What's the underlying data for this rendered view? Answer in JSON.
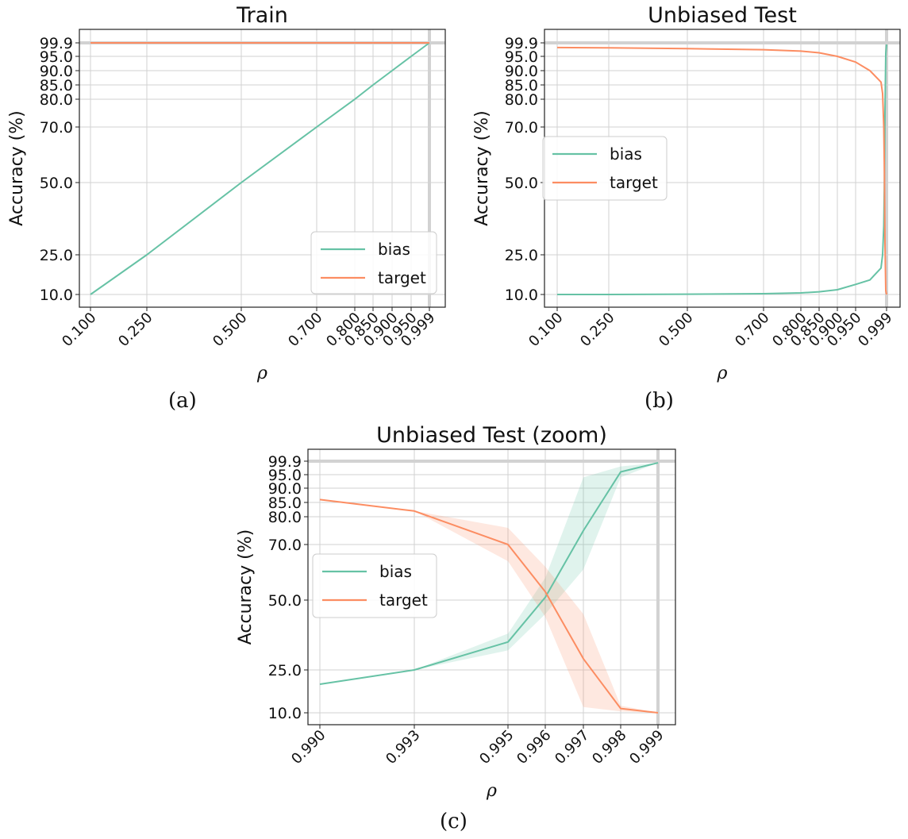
{
  "colors": {
    "bias": "#66c2a5",
    "target": "#fc8d62",
    "grid": "#d2d2d2",
    "axis": "#222222"
  },
  "captions": [
    "(a)",
    "(b)",
    "(c)"
  ],
  "chart_data": [
    {
      "type": "line",
      "title": "Train",
      "xlabel": "ρ",
      "ylabel": "Accuracy (%)",
      "xticks": [
        0.1,
        0.25,
        0.5,
        0.7,
        0.8,
        0.85,
        0.9,
        0.95,
        0.999
      ],
      "xtick_labels": [
        "0.100",
        "0.250",
        "0.500",
        "0.700",
        "0.800",
        "0.850",
        "0.900",
        "0.950",
        "0.999"
      ],
      "yticks": [
        10.0,
        25.0,
        50.0,
        70.0,
        80.0,
        85.0,
        90.0,
        95.0,
        99.9
      ],
      "ytick_labels": [
        "10.0",
        "25.0",
        "50.0",
        "70.0",
        "80.0",
        "85.0",
        "90.0",
        "95.0",
        "99.9"
      ],
      "grid": true,
      "legend_position": "lower-right",
      "x": [
        0.1,
        0.25,
        0.5,
        0.7,
        0.8,
        0.85,
        0.9,
        0.95,
        0.999
      ],
      "series": [
        {
          "name": "bias",
          "values": [
            10.0,
            25.0,
            50.0,
            70.0,
            80.0,
            85.0,
            90.0,
            95.0,
            99.9
          ]
        },
        {
          "name": "target",
          "values": [
            99.9,
            99.9,
            99.9,
            99.9,
            99.9,
            99.9,
            99.9,
            99.9,
            99.9
          ]
        }
      ]
    },
    {
      "type": "line",
      "title": "Unbiased Test",
      "xlabel": "ρ",
      "ylabel": "Accuracy (%)",
      "xticks": [
        0.1,
        0.25,
        0.5,
        0.7,
        0.8,
        0.85,
        0.9,
        0.95,
        0.999
      ],
      "xtick_labels": [
        "0.100",
        "0.250",
        "0.500",
        "0.700",
        "0.800",
        "0.850",
        "0.900",
        "0.950",
        "0.999"
      ],
      "yticks": [
        10.0,
        25.0,
        50.0,
        70.0,
        80.0,
        85.0,
        90.0,
        95.0,
        99.9
      ],
      "ytick_labels": [
        "10.0",
        "25.0",
        "50.0",
        "70.0",
        "80.0",
        "85.0",
        "90.0",
        "95.0",
        "99.9"
      ],
      "grid": true,
      "legend_position": "center-left",
      "x": [
        0.1,
        0.25,
        0.5,
        0.7,
        0.8,
        0.85,
        0.9,
        0.95,
        0.97,
        0.99,
        0.993,
        0.995,
        0.996,
        0.997,
        0.998,
        0.999
      ],
      "series": [
        {
          "name": "bias",
          "values": [
            10.0,
            10.0,
            10.1,
            10.3,
            10.6,
            11.0,
            11.8,
            13.8,
            15.5,
            20.0,
            25.0,
            35.0,
            51.0,
            75.0,
            96.0,
            99.3
          ]
        },
        {
          "name": "target",
          "values": [
            98.2,
            98.1,
            97.8,
            97.4,
            96.9,
            96.3,
            95.0,
            93.0,
            90.0,
            86.0,
            82.0,
            70.0,
            53.0,
            29.0,
            11.5,
            10.0
          ]
        }
      ]
    },
    {
      "type": "line",
      "title": "Unbiased Test (zoom)",
      "xlabel": "ρ",
      "ylabel": "Accuracy (%)",
      "xticks": [
        0.99,
        0.993,
        0.995,
        0.996,
        0.997,
        0.998,
        0.999
      ],
      "xtick_labels": [
        "0.990",
        "0.993",
        "0.995",
        "0.996",
        "0.997",
        "0.998",
        "0.999"
      ],
      "yticks": [
        10.0,
        25.0,
        50.0,
        70.0,
        80.0,
        85.0,
        90.0,
        95.0,
        99.9
      ],
      "ytick_labels": [
        "10.0",
        "25.0",
        "50.0",
        "70.0",
        "80.0",
        "85.0",
        "90.0",
        "95.0",
        "99.9"
      ],
      "grid": true,
      "legend_position": "center-left",
      "x": [
        0.99,
        0.993,
        0.995,
        0.996,
        0.997,
        0.998,
        0.999
      ],
      "series": [
        {
          "name": "bias",
          "values": [
            20.0,
            25.0,
            35.0,
            51.0,
            75.0,
            96.0,
            99.3
          ],
          "lower": [
            20.0,
            25.0,
            32.0,
            45.0,
            61.0,
            94.0,
            99.3
          ],
          "upper": [
            20.0,
            25.0,
            38.0,
            58.0,
            94.0,
            98.0,
            99.3
          ]
        },
        {
          "name": "target",
          "values": [
            86.0,
            82.0,
            70.0,
            53.0,
            29.0,
            11.5,
            10.0
          ],
          "lower": [
            86.0,
            82.0,
            64.0,
            44.0,
            12.0,
            10.5,
            10.0
          ],
          "upper": [
            86.0,
            82.0,
            76.0,
            62.0,
            45.0,
            12.5,
            10.0
          ]
        }
      ]
    }
  ]
}
